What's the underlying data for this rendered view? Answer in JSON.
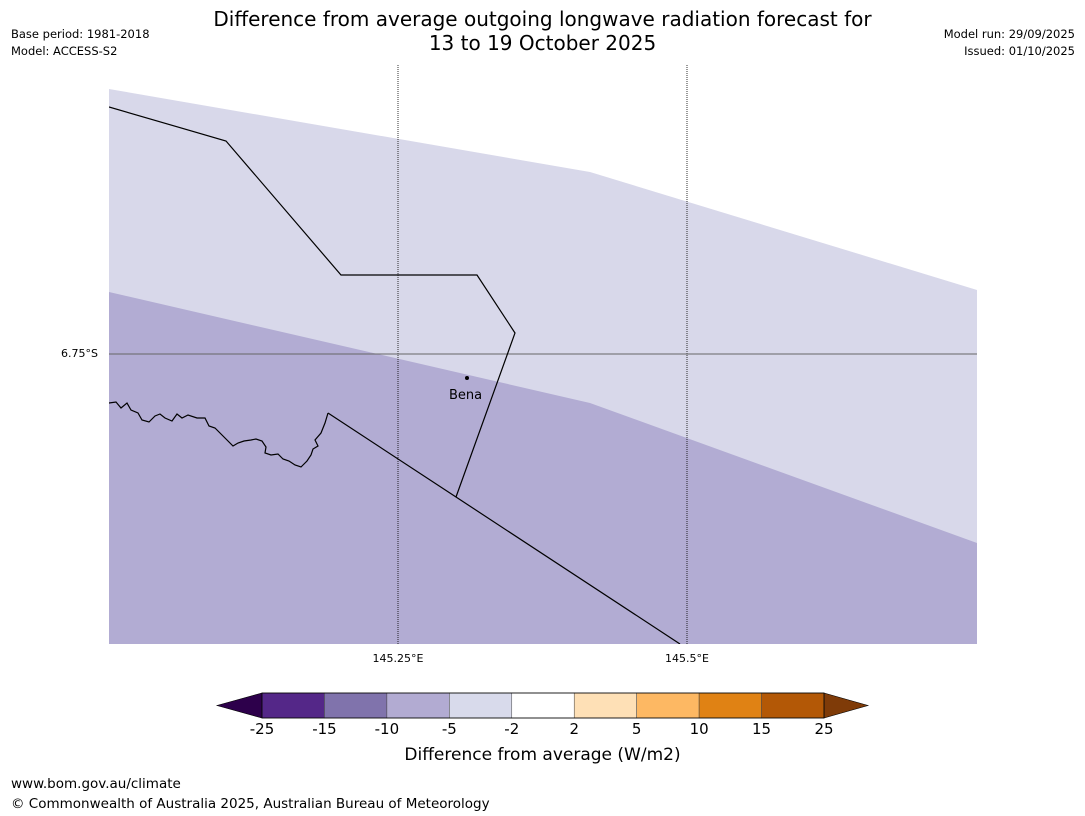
{
  "title": {
    "line1": "Difference from average outgoing longwave radiation forecast for",
    "line2": "13 to 19 October 2025"
  },
  "meta_left": {
    "base_period": "Base period: 1981-2018",
    "model": "Model: ACCESS-S2"
  },
  "meta_right": {
    "model_run": "Model run: 29/09/2025",
    "issued": "Issued: 01/10/2025"
  },
  "map": {
    "lat_label": "6.75°S",
    "lon_labels": [
      "145.25°E",
      "145.5°E"
    ],
    "place": {
      "name": "Bena"
    },
    "colors": {
      "band_upper": "#d8d8ea",
      "band_lower": "#b2acd3"
    }
  },
  "colorbar": {
    "title": "Difference from average (W/m2)",
    "ticks": [
      "-25",
      "-15",
      "-10",
      "-5",
      "-2",
      "2",
      "5",
      "10",
      "15",
      "25"
    ],
    "colors": {
      "under": "#2d004b",
      "bins": [
        "#542788",
        "#8073ac",
        "#b2abd2",
        "#d8daeb",
        "#ffffff",
        "#fee0b6",
        "#fdb863",
        "#e08214",
        "#b35806"
      ],
      "over": "#7f3b08"
    }
  },
  "footer": {
    "url": "www.bom.gov.au/climate",
    "copyright": "© Commonwealth of Australia 2025, Australian Bureau of Meteorology"
  }
}
